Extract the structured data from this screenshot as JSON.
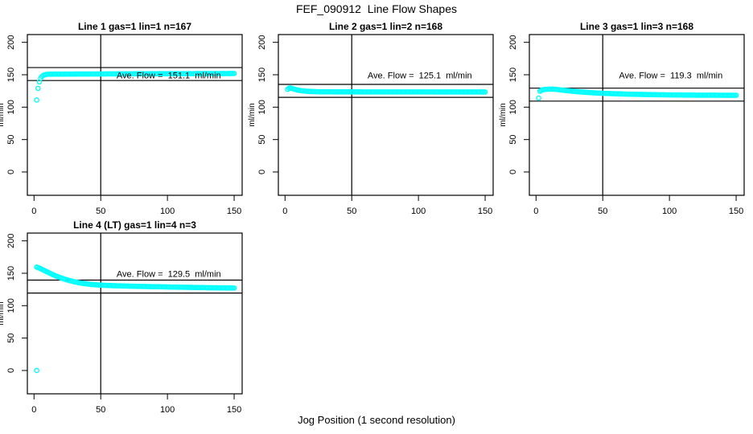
{
  "figure": {
    "title": "FEF_090912  Line Flow Shapes",
    "xlabel": "Jog Position (1 second resolution)",
    "y_axis_label": "ml/min",
    "point_color": "#00ffff",
    "axis_color": "#000000",
    "background": "#ffffff"
  },
  "axes": {
    "x_ticks": [
      0,
      50,
      100,
      150
    ],
    "y_ticks": [
      0,
      50,
      100,
      150,
      200
    ],
    "x_range_shown": [
      0,
      150
    ],
    "y_range_shown": [
      0,
      200
    ],
    "x_range_internal": [
      -5,
      156
    ],
    "y_range_internal": [
      -36,
      212
    ],
    "reference_vline_x": 50,
    "grid": false
  },
  "chart_data": [
    {
      "type": "scatter",
      "title": "Line 1 gas=1 lin=1 n=167",
      "n": 167,
      "ave_flow": 151.1,
      "ave_flow_label": "Ave. Flow =  151.1  ml/min",
      "hlines": [
        161.1,
        141.1
      ],
      "x_step": 1,
      "points": [
        [
          2,
          111
        ],
        [
          3,
          129
        ],
        [
          4,
          139
        ],
        [
          5,
          144.5
        ],
        [
          6,
          147.5
        ],
        [
          7,
          149
        ],
        [
          8,
          150
        ],
        [
          10,
          150.7
        ],
        [
          15,
          151
        ],
        [
          30,
          151.1
        ],
        [
          60,
          151.3
        ],
        [
          100,
          151.6
        ],
        [
          150,
          151.9
        ]
      ],
      "outliers": []
    },
    {
      "type": "scatter",
      "title": "Line 2 gas=1 lin=2 n=168",
      "n": 168,
      "ave_flow": 125.1,
      "ave_flow_label": "Ave. Flow =  125.1  ml/min",
      "hlines": [
        135.1,
        115.1
      ],
      "x_step": 1,
      "points": [
        [
          2,
          127.5
        ],
        [
          3,
          129.3
        ],
        [
          4,
          129.6
        ],
        [
          5,
          129.2
        ],
        [
          6,
          128.4
        ],
        [
          8,
          127.2
        ],
        [
          10,
          126.2
        ],
        [
          12,
          125.4
        ],
        [
          15,
          124.7
        ],
        [
          20,
          124.1
        ],
        [
          25,
          123.8
        ],
        [
          30,
          123.7
        ],
        [
          40,
          123.6
        ],
        [
          60,
          123.5
        ],
        [
          100,
          123.5
        ],
        [
          150,
          123.4
        ]
      ],
      "outliers": []
    },
    {
      "type": "scatter",
      "title": "Line 3 gas=1 lin=3 n=168",
      "n": 168,
      "ave_flow": 119.3,
      "ave_flow_label": "Ave. Flow =  119.3  ml/min",
      "hlines": [
        129.3,
        109.3
      ],
      "x_step": 1,
      "points": [
        [
          2,
          114
        ],
        [
          3,
          124.5
        ],
        [
          4,
          126
        ],
        [
          5,
          126.8
        ],
        [
          7,
          127.4
        ],
        [
          10,
          127.8
        ],
        [
          13,
          127.8
        ],
        [
          16,
          127.2
        ],
        [
          20,
          126.2
        ],
        [
          25,
          125.1
        ],
        [
          30,
          124.1
        ],
        [
          35,
          123.2
        ],
        [
          40,
          122.5
        ],
        [
          45,
          121.9
        ],
        [
          50,
          121.4
        ],
        [
          60,
          120.6
        ],
        [
          70,
          120
        ],
        [
          80,
          119.6
        ],
        [
          90,
          119.2
        ],
        [
          100,
          118.9
        ],
        [
          110,
          118.7
        ],
        [
          120,
          118.5
        ],
        [
          135,
          118.4
        ],
        [
          150,
          118.3
        ]
      ],
      "outliers": []
    },
    {
      "type": "scatter",
      "title": "Line 4 (LT) gas=1 lin=4 n=3",
      "n": 3,
      "ave_flow": 129.5,
      "ave_flow_label": "Ave. Flow =  129.5  ml/min",
      "hlines": [
        139.5,
        119.5
      ],
      "x_step": 1,
      "points": [
        [
          2,
          159.5
        ],
        [
          3,
          158.8
        ],
        [
          4,
          158
        ],
        [
          5,
          157
        ],
        [
          6,
          156
        ],
        [
          8,
          154
        ],
        [
          10,
          152
        ],
        [
          12,
          150
        ],
        [
          14,
          148
        ],
        [
          16,
          146.2
        ],
        [
          18,
          144.5
        ],
        [
          20,
          143
        ],
        [
          22,
          141.6
        ],
        [
          24,
          140.3
        ],
        [
          26,
          139.1
        ],
        [
          28,
          138
        ],
        [
          30,
          137
        ],
        [
          32,
          136.1
        ],
        [
          34,
          135.3
        ],
        [
          36,
          134.6
        ],
        [
          38,
          134
        ],
        [
          40,
          133.5
        ],
        [
          43,
          132.8
        ],
        [
          46,
          132.3
        ],
        [
          50,
          131.7
        ],
        [
          55,
          131.2
        ],
        [
          60,
          130.8
        ],
        [
          70,
          130.2
        ],
        [
          80,
          129.7
        ],
        [
          90,
          129.3
        ],
        [
          100,
          128.9
        ],
        [
          110,
          128.5
        ],
        [
          120,
          128.1
        ],
        [
          135,
          127.6
        ],
        [
          150,
          127.2
        ]
      ],
      "outliers": [
        [
          2,
          0
        ]
      ]
    }
  ]
}
